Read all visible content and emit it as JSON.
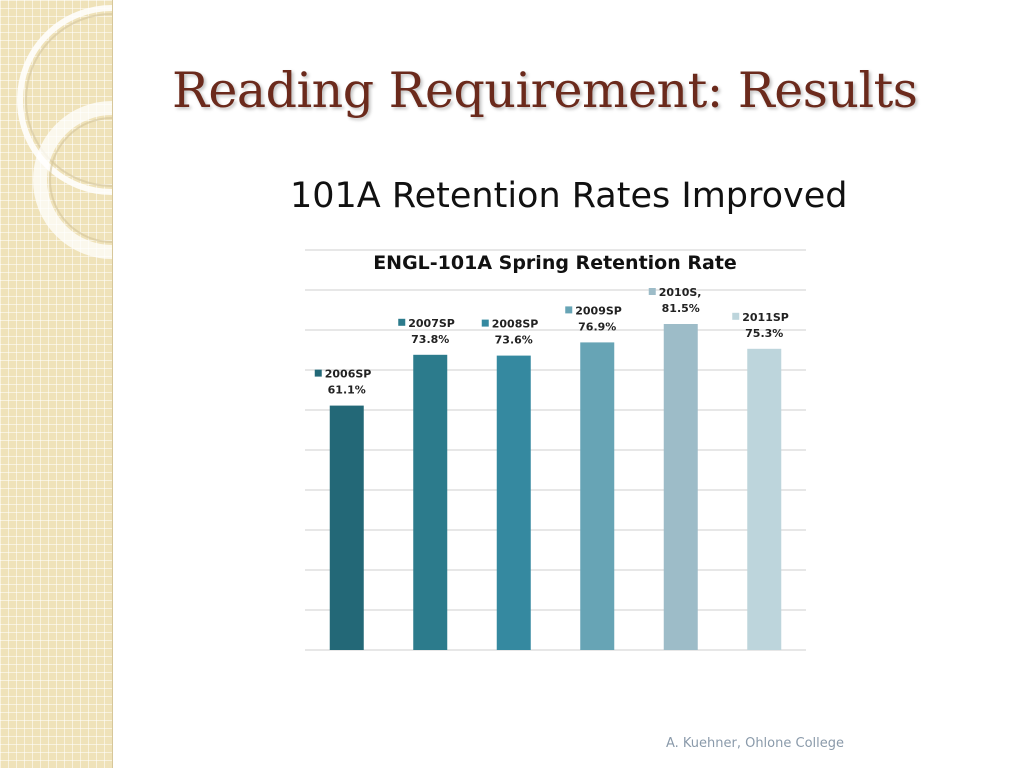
{
  "slide": {
    "title": "Reading Requirement: Results",
    "subtitle": "101A Retention Rates Improved",
    "footer": "A. Kuehner, Ohlone College"
  },
  "chart_data": {
    "type": "bar",
    "title": "ENGL-101A Spring Retention Rate",
    "categories": [
      "2006SP",
      "2007SP",
      "2008SP",
      "2009SP",
      "2010S,",
      "2011SP"
    ],
    "values": [
      61.1,
      73.8,
      73.6,
      76.9,
      81.5,
      75.3
    ],
    "value_labels": [
      "61.1%",
      "73.8%",
      "73.6%",
      "76.9%",
      "81.5%",
      "75.3%"
    ],
    "colors": [
      "#236877",
      "#2c7b8c",
      "#3589a0",
      "#67a4b5",
      "#9dbcc8",
      "#bdd5dc"
    ],
    "ylim": [
      0,
      100
    ],
    "gridlines": true,
    "axis_labels_visible": false
  }
}
